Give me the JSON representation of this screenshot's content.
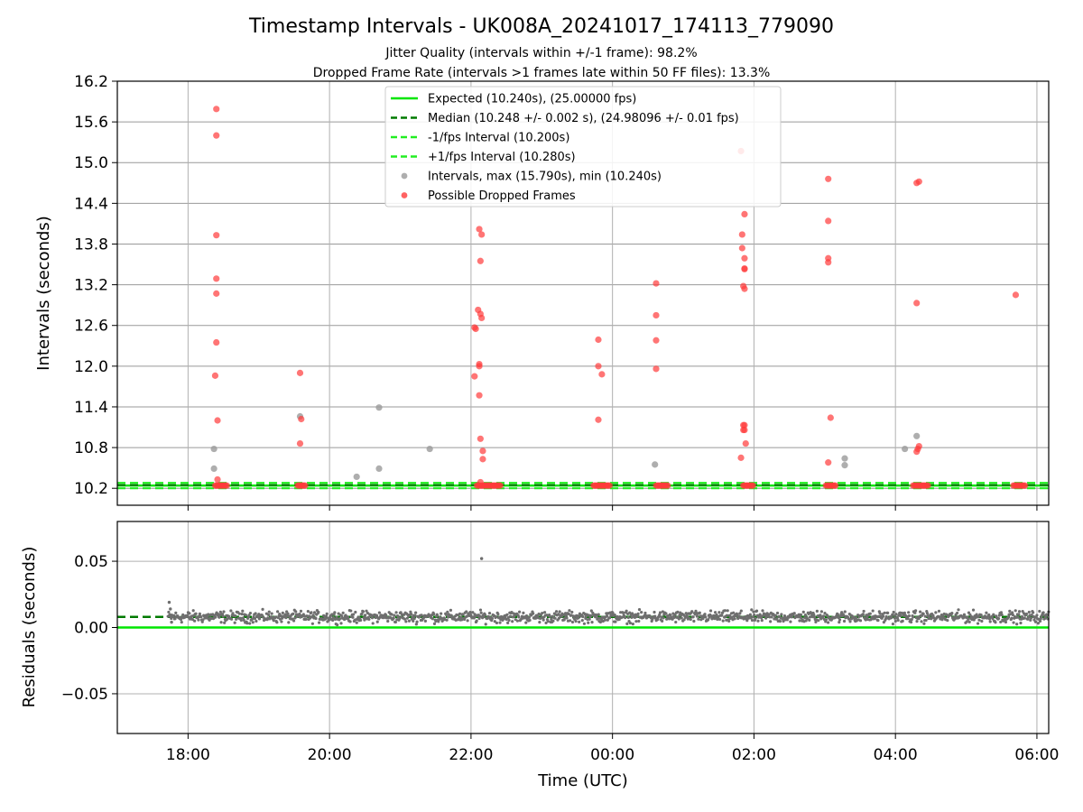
{
  "title": "Timestamp Intervals - UK008A_20241017_174113_779090",
  "subtitle_line1": "Jitter Quality (intervals within +/-1 frame): 98.2%",
  "subtitle_line2": "Dropped Frame Rate (intervals >1 frames late within 50 FF files): 13.3%",
  "xlabel": "Time (UTC)",
  "colors": {
    "expected": "#00e600",
    "median": "#007a00",
    "interval_bound": "#22ee22",
    "interval_point": "#9a9a9a",
    "dropped_point": "#ff3b3b",
    "residual_point": "#6e6e6e",
    "grid": "#b0b0b0"
  },
  "chart_data": [
    {
      "type": "scatter",
      "ylabel": "Intervals (seconds)",
      "grid": true,
      "legend_position": "top-center",
      "x_axis": {
        "type": "time",
        "start": "17:00",
        "end": "06:10",
        "ticks": [
          "18:00",
          "20:00",
          "22:00",
          "00:00",
          "02:00",
          "04:00",
          "06:00"
        ]
      },
      "ylim": [
        9.95,
        16.2
      ],
      "y_ticks": [
        "10.2",
        "10.8",
        "11.4",
        "12.0",
        "12.6",
        "13.2",
        "13.8",
        "14.4",
        "15.0",
        "15.6",
        "16.2"
      ],
      "legend": [
        {
          "label": "Expected (10.240s), (25.00000 fps)",
          "style": "solid-line",
          "color_key": "expected"
        },
        {
          "label": "Median (10.248 +/- 0.002 s), (24.98096 +/- 0.01 fps)",
          "style": "dashed-line",
          "color_key": "median"
        },
        {
          "label": "-1/fps Interval (10.200s)",
          "style": "dashed-line",
          "color_key": "interval_bound"
        },
        {
          "label": "+1/fps Interval (10.280s)",
          "style": "dashed-line",
          "color_key": "interval_bound"
        },
        {
          "label": "Intervals, max (15.790s), min (10.240s)",
          "style": "dot",
          "color_key": "interval_point"
        },
        {
          "label": "Possible Dropped Frames",
          "style": "dot",
          "color_key": "dropped_point"
        }
      ],
      "lines": [
        {
          "name": "Expected",
          "y": 10.24,
          "dash": false,
          "color_key": "expected"
        },
        {
          "name": "Median",
          "y": 10.248,
          "dash": true,
          "color_key": "median"
        },
        {
          "name": "-1/fps Interval",
          "y": 10.2,
          "dash": true,
          "color_key": "interval_bound"
        },
        {
          "name": "+1/fps Interval",
          "y": 10.28,
          "dash": true,
          "color_key": "interval_bound"
        }
      ],
      "dropped_bands": [
        [
          "18:23",
          "18:33"
        ],
        [
          "19:33",
          "19:40"
        ],
        [
          "22:05",
          "22:25"
        ],
        [
          "23:44",
          "23:58"
        ],
        [
          "00:37",
          "00:47"
        ],
        [
          "01:51",
          "02:00"
        ],
        [
          "03:01",
          "03:10"
        ],
        [
          "04:15",
          "04:28"
        ],
        [
          "05:40",
          "05:50"
        ]
      ],
      "intervals_gray": [
        [
          "18:22",
          10.78
        ],
        [
          "18:22",
          10.49
        ],
        [
          "19:35",
          11.26
        ],
        [
          "20:23",
          10.37
        ],
        [
          "20:42",
          11.39
        ],
        [
          "20:42",
          10.49
        ],
        [
          "21:25",
          10.78
        ],
        [
          "00:36",
          10.55
        ],
        [
          "03:17",
          10.64
        ],
        [
          "03:17",
          10.54
        ],
        [
          "04:08",
          10.78
        ],
        [
          "04:18",
          10.97
        ]
      ],
      "dropped_points": [
        [
          "18:24",
          15.79
        ],
        [
          "18:24",
          15.4
        ],
        [
          "18:24",
          13.93
        ],
        [
          "18:24",
          13.29
        ],
        [
          "18:24",
          13.07
        ],
        [
          "18:24",
          12.35
        ],
        [
          "18:23",
          11.86
        ],
        [
          "18:25",
          11.2
        ],
        [
          "18:25",
          10.33
        ],
        [
          "19:35",
          11.9
        ],
        [
          "19:36",
          11.22
        ],
        [
          "19:35",
          10.86
        ],
        [
          "22:03",
          12.57
        ],
        [
          "22:04",
          12.55
        ],
        [
          "22:06",
          12.83
        ],
        [
          "22:08",
          12.77
        ],
        [
          "22:09",
          12.71
        ],
        [
          "22:07",
          14.02
        ],
        [
          "22:09",
          13.94
        ],
        [
          "22:08",
          13.55
        ],
        [
          "22:07",
          12.03
        ],
        [
          "22:07",
          12.0
        ],
        [
          "22:03",
          11.85
        ],
        [
          "22:07",
          11.57
        ],
        [
          "22:08",
          10.93
        ],
        [
          "22:10",
          10.75
        ],
        [
          "22:10",
          10.63
        ],
        [
          "22:08",
          10.29
        ],
        [
          "23:48",
          12.39
        ],
        [
          "23:48",
          12.0
        ],
        [
          "23:51",
          11.88
        ],
        [
          "23:48",
          11.21
        ],
        [
          "00:37",
          13.22
        ],
        [
          "00:37",
          12.75
        ],
        [
          "00:37",
          12.38
        ],
        [
          "00:37",
          11.96
        ],
        [
          "01:49",
          15.17
        ],
        [
          "01:50",
          13.94
        ],
        [
          "01:50",
          13.74
        ],
        [
          "01:52",
          14.24
        ],
        [
          "01:52",
          13.59
        ],
        [
          "01:52",
          13.44
        ],
        [
          "01:52",
          13.43
        ],
        [
          "01:51",
          13.18
        ],
        [
          "01:52",
          13.14
        ],
        [
          "01:51",
          11.13
        ],
        [
          "01:52",
          11.13
        ],
        [
          "01:51",
          11.06
        ],
        [
          "01:52",
          11.06
        ],
        [
          "01:53",
          10.86
        ],
        [
          "01:49",
          10.65
        ],
        [
          "03:03",
          14.76
        ],
        [
          "03:03",
          14.14
        ],
        [
          "03:03",
          13.59
        ],
        [
          "03:03",
          13.53
        ],
        [
          "03:05",
          11.24
        ],
        [
          "03:03",
          10.58
        ],
        [
          "04:18",
          14.7
        ],
        [
          "04:20",
          14.72
        ],
        [
          "04:18",
          12.93
        ],
        [
          "04:20",
          10.82
        ],
        [
          "04:19",
          10.78
        ],
        [
          "04:18",
          10.74
        ],
        [
          "05:42",
          13.05
        ]
      ]
    },
    {
      "type": "scatter",
      "ylabel": "Residuals (seconds)",
      "grid": true,
      "x_axis": {
        "type": "time",
        "start": "17:00",
        "end": "06:10",
        "ticks": [
          "18:00",
          "20:00",
          "22:00",
          "00:00",
          "02:00",
          "04:00",
          "06:00"
        ]
      },
      "ylim": [
        -0.08,
        0.08
      ],
      "y_ticks": [
        "0.05",
        "0.00",
        "−0.05"
      ],
      "lines": [
        {
          "name": "Expected residual",
          "y": 0.0,
          "dash": false,
          "color_key": "expected"
        },
        {
          "name": "Median residual",
          "y": 0.008,
          "dash": true,
          "color_key": "median"
        }
      ],
      "residuals": {
        "description": "dense band of points between 17:43 and 06:10",
        "start": "17:43",
        "end": "06:10",
        "typical": 0.008,
        "spread": 0.004,
        "outliers": [
          [
            "17:44",
            0.019
          ],
          [
            "17:45",
            0.014
          ],
          [
            "17:46",
            0.004
          ],
          [
            "22:09",
            0.052
          ]
        ]
      }
    }
  ]
}
